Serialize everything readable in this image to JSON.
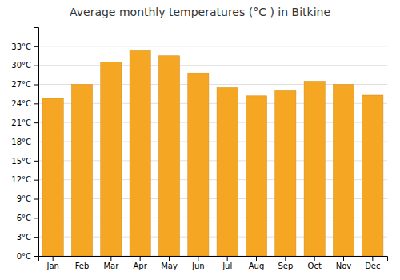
{
  "chart_data": {
    "type": "bar",
    "title": "Average monthly temperatures (°C ) in Bitkine",
    "categories": [
      "Jan",
      "Feb",
      "Mar",
      "Apr",
      "May",
      "Jun",
      "Jul",
      "Aug",
      "Sep",
      "Oct",
      "Nov",
      "Dec"
    ],
    "values": [
      24.8,
      27.0,
      30.5,
      32.3,
      31.5,
      28.8,
      26.5,
      25.2,
      26.0,
      27.5,
      27.0,
      25.3
    ],
    "color": "#F5A623",
    "ylim": [
      0,
      36
    ],
    "yticks": [
      {
        "value": 0,
        "label": "0°C"
      },
      {
        "value": 3,
        "label": "3°C"
      },
      {
        "value": 6,
        "label": "6°C"
      },
      {
        "value": 9,
        "label": "9°C"
      },
      {
        "value": 12,
        "label": "12°C"
      },
      {
        "value": 15,
        "label": "15°C"
      },
      {
        "value": 18,
        "label": "18°C"
      },
      {
        "value": 21,
        "label": "21°C"
      },
      {
        "value": 24,
        "label": "24°C"
      },
      {
        "value": 27,
        "label": "27°C"
      },
      {
        "value": 30,
        "label": "30°C"
      },
      {
        "value": 33,
        "label": "33°C"
      }
    ],
    "grid": true
  }
}
